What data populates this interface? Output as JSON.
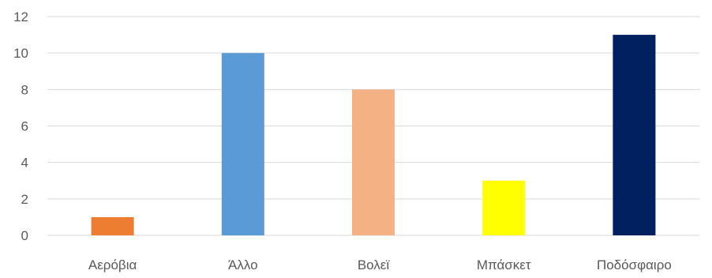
{
  "chart_data": {
    "type": "bar",
    "categories": [
      "Αερόβια",
      "Άλλο",
      "Βολεϊ",
      "Μπάσκετ",
      "Ποδόσφαιρο"
    ],
    "values": [
      1,
      10,
      8,
      3,
      11
    ],
    "colors": [
      "#ED7D31",
      "#5B9BD5",
      "#F4B183",
      "#FFFF00",
      "#002060"
    ],
    "ylim": [
      0,
      12
    ],
    "yticks": [
      0,
      2,
      4,
      6,
      8,
      10,
      12
    ],
    "grid": true,
    "legend": "none",
    "title": "",
    "xlabel": "",
    "ylabel": ""
  }
}
